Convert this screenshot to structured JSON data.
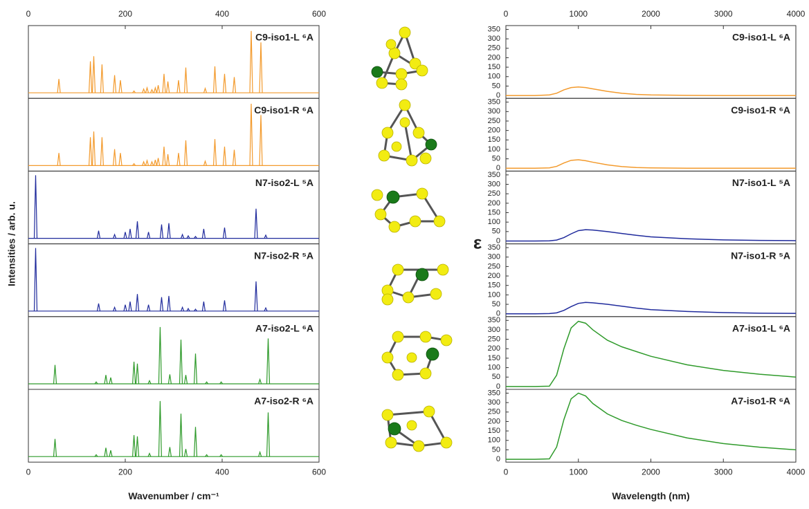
{
  "chart_data": [
    {
      "type": "stick",
      "xlabel": "Wavenumber / cm⁻¹",
      "ylabel": "Intensities / arb. u.",
      "xlim": [
        0,
        600
      ],
      "xticks": [
        0,
        200,
        400,
        600
      ],
      "ylim": [
        0,
        100
      ],
      "panels": [
        {
          "name": "C9-iso1-L ⁶A",
          "color": "#f39a2c",
          "x": [
            63,
            128,
            135,
            152,
            178,
            190,
            218,
            238,
            245,
            255,
            262,
            268,
            280,
            288,
            310,
            325,
            365,
            385,
            405,
            425,
            460,
            480
          ],
          "values": [
            22,
            50,
            58,
            45,
            28,
            20,
            3,
            6,
            8,
            5,
            8,
            12,
            30,
            18,
            20,
            40,
            7,
            42,
            30,
            25,
            98,
            80
          ]
        },
        {
          "name": "C9-iso1-R ⁶A",
          "color": "#f39a2c",
          "x": [
            63,
            128,
            135,
            152,
            178,
            190,
            218,
            238,
            245,
            255,
            262,
            268,
            280,
            288,
            310,
            325,
            365,
            385,
            405,
            425,
            460,
            480
          ],
          "values": [
            20,
            45,
            54,
            45,
            26,
            20,
            3,
            6,
            8,
            6,
            9,
            12,
            30,
            18,
            20,
            40,
            7,
            42,
            30,
            25,
            98,
            80
          ]
        },
        {
          "name": "N7-iso2-L ⁵A",
          "color": "#1f2a9c",
          "x": [
            15,
            145,
            178,
            200,
            210,
            225,
            248,
            275,
            290,
            318,
            330,
            345,
            362,
            405,
            470,
            490
          ],
          "values": [
            100,
            12,
            6,
            10,
            15,
            27,
            10,
            22,
            24,
            6,
            4,
            3,
            15,
            17,
            47,
            5
          ]
        },
        {
          "name": "N7-iso2-R ⁵A",
          "color": "#1f2a9c",
          "x": [
            15,
            145,
            178,
            200,
            210,
            225,
            248,
            275,
            290,
            318,
            330,
            345,
            362,
            405,
            470,
            490
          ],
          "values": [
            100,
            12,
            6,
            10,
            15,
            27,
            10,
            22,
            24,
            6,
            4,
            3,
            15,
            17,
            47,
            5
          ]
        },
        {
          "name": "A7-iso2-L ⁶A",
          "color": "#2e9a2a",
          "x": [
            55,
            140,
            160,
            170,
            218,
            225,
            250,
            272,
            292,
            315,
            325,
            345,
            368,
            398,
            478,
            495
          ],
          "values": [
            30,
            3,
            14,
            10,
            35,
            32,
            5,
            90,
            15,
            70,
            14,
            48,
            3,
            3,
            7,
            72
          ]
        },
        {
          "name": "A7-iso2-R ⁶A",
          "color": "#2e9a2a",
          "x": [
            55,
            140,
            160,
            170,
            218,
            225,
            250,
            272,
            292,
            315,
            325,
            345,
            368,
            398,
            478,
            495
          ],
          "values": [
            28,
            3,
            14,
            10,
            34,
            32,
            5,
            88,
            15,
            68,
            12,
            47,
            3,
            3,
            7,
            70
          ]
        }
      ]
    },
    {
      "type": "line",
      "xlabel": "Wavelength (nm)",
      "ylabel": "ε",
      "xlim": [
        0,
        4000
      ],
      "xticks": [
        0,
        1000,
        2000,
        3000,
        4000
      ],
      "ylim": [
        -15,
        370
      ],
      "yticks": [
        0,
        50,
        100,
        150,
        200,
        250,
        300,
        350
      ],
      "x": [
        0,
        400,
        600,
        700,
        800,
        900,
        1000,
        1100,
        1200,
        1400,
        1600,
        1800,
        2000,
        2500,
        3000,
        3500,
        4000
      ],
      "panels": [
        {
          "name": "C9-iso1-L ⁶A",
          "color": "#f39a2c",
          "values": [
            0,
            0,
            3,
            12,
            30,
            42,
            45,
            42,
            35,
            22,
            12,
            6,
            3,
            1,
            0,
            0,
            0
          ]
        },
        {
          "name": "C9-iso1-R ⁶A",
          "color": "#f39a2c",
          "values": [
            0,
            0,
            2,
            10,
            28,
            42,
            45,
            40,
            32,
            18,
            9,
            4,
            2,
            0,
            0,
            0,
            0
          ]
        },
        {
          "name": "N7-iso1-L ⁵A",
          "color": "#1f2a9c",
          "values": [
            0,
            0,
            1,
            5,
            18,
            38,
            55,
            60,
            58,
            50,
            40,
            30,
            22,
            12,
            6,
            3,
            2
          ]
        },
        {
          "name": "N7-iso1-R ⁵A",
          "color": "#1f2a9c",
          "values": [
            0,
            0,
            1,
            5,
            18,
            38,
            55,
            60,
            58,
            50,
            40,
            30,
            22,
            12,
            6,
            3,
            2
          ]
        },
        {
          "name": "A7-iso1-L ⁶A",
          "color": "#2e9a2a",
          "values": [
            0,
            0,
            2,
            60,
            200,
            310,
            345,
            335,
            300,
            245,
            210,
            185,
            160,
            115,
            85,
            65,
            50
          ]
        },
        {
          "name": "A7-iso1-R ⁶A",
          "color": "#2e9a2a",
          "values": [
            0,
            0,
            2,
            65,
            210,
            320,
            350,
            335,
            295,
            240,
            205,
            180,
            158,
            113,
            83,
            64,
            50
          ]
        }
      ]
    }
  ]
}
